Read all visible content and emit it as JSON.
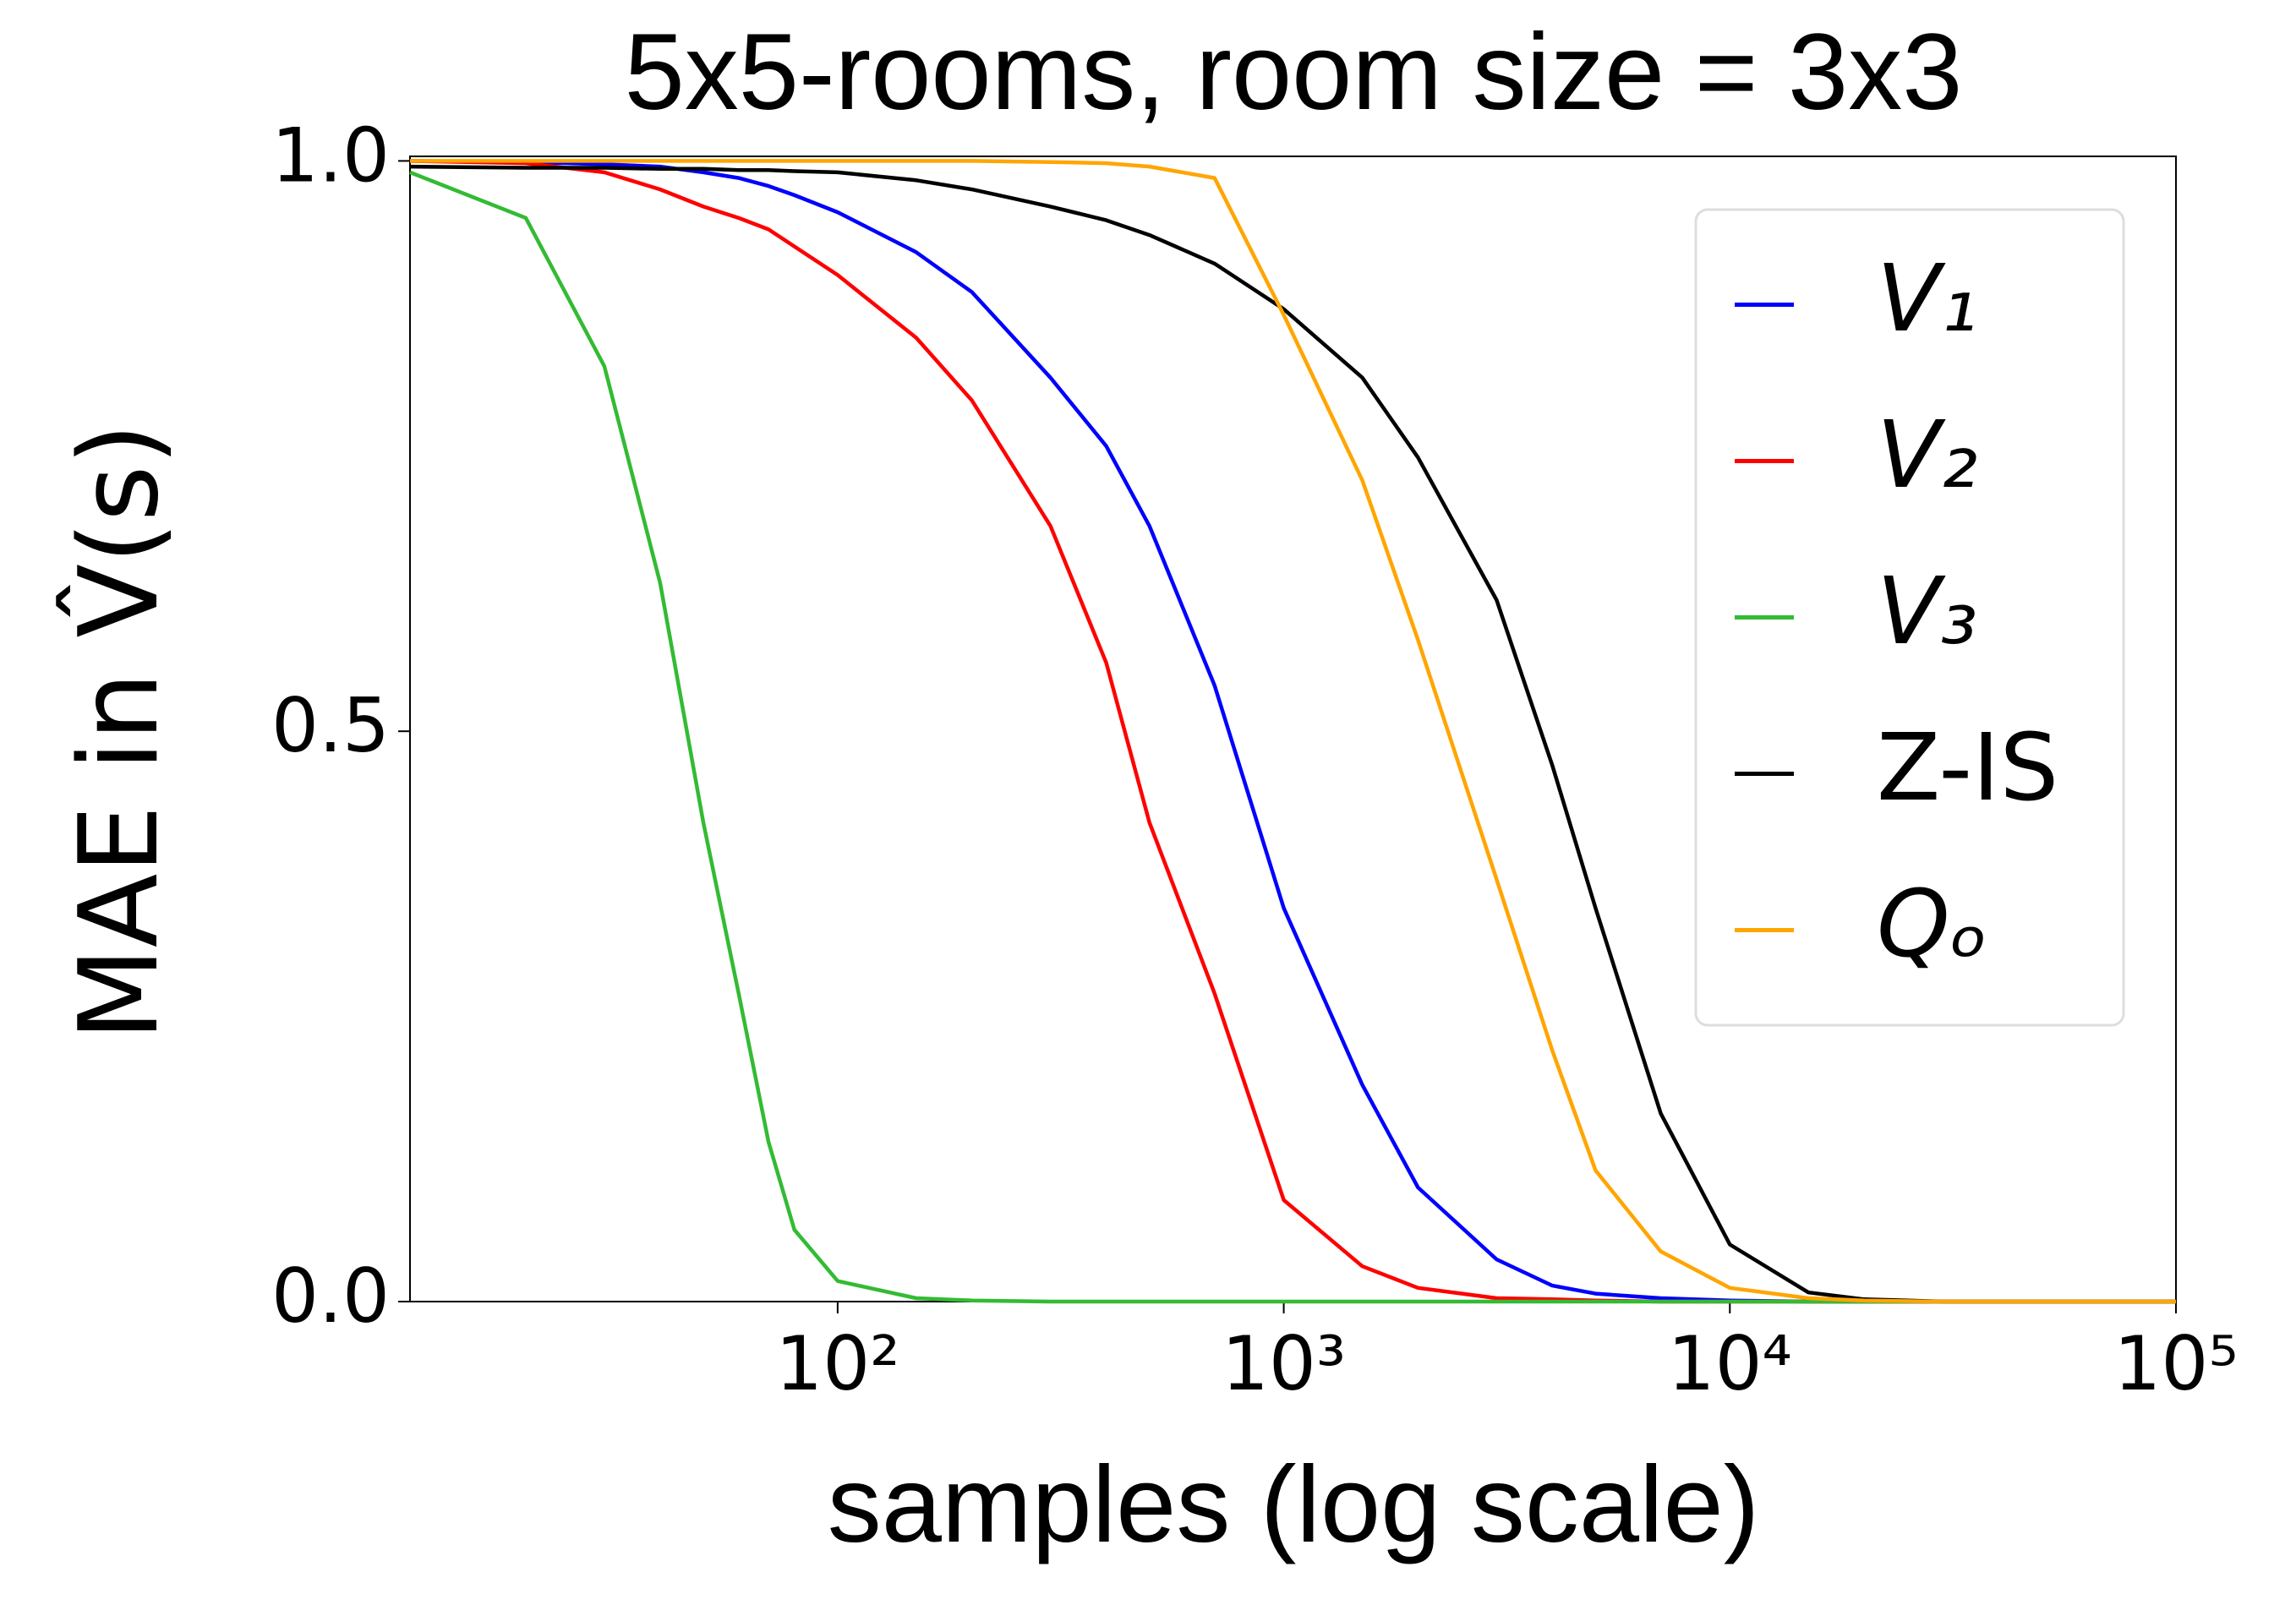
{
  "chart_data": {
    "type": "line",
    "title": "5x5-rooms, room size = 3x3",
    "xlabel": "samples (log scale)",
    "ylabel": "MAE in V̂(s)",
    "xscale": "log",
    "xlim": [
      11,
      100000
    ],
    "ylim": [
      0,
      1.004
    ],
    "xticks": [
      {
        "value": 100,
        "label": "10²"
      },
      {
        "value": 1000,
        "label": "10³"
      },
      {
        "value": 10000,
        "label": "10⁴"
      },
      {
        "value": 100000,
        "label": "10⁵"
      }
    ],
    "yticks": [
      {
        "value": 0,
        "label": "0.0"
      },
      0.5,
      {
        "value": 1,
        "label": "1.0"
      }
    ],
    "legend": "upper right",
    "x": [
      11,
      20,
      30,
      40,
      50,
      60,
      70,
      80,
      100,
      150,
      200,
      300,
      400,
      500,
      700,
      1000,
      1500,
      2000,
      3000,
      4000,
      5000,
      7000,
      10000,
      15000,
      20000,
      30000,
      50000,
      100000
    ],
    "series": [
      {
        "name": "V₁",
        "color": "#0000ff",
        "values": [
          1.0,
          0.999,
          0.997,
          0.995,
          0.99,
          0.985,
          0.978,
          0.97,
          0.955,
          0.92,
          0.885,
          0.81,
          0.75,
          0.68,
          0.54,
          0.345,
          0.19,
          0.1,
          0.037,
          0.014,
          0.007,
          0.003,
          0.001,
          0,
          0,
          0,
          0,
          0
        ]
      },
      {
        "name": "V₂",
        "color": "#ff0000",
        "values": [
          1.0,
          0.998,
          0.99,
          0.975,
          0.96,
          0.95,
          0.94,
          0.925,
          0.9,
          0.845,
          0.79,
          0.68,
          0.56,
          0.42,
          0.27,
          0.089,
          0.031,
          0.012,
          0.003,
          0.002,
          0.001,
          0,
          0,
          0,
          0,
          0,
          0,
          0
        ]
      },
      {
        "name": "V₃",
        "color": "#33bb33",
        "values": [
          0.99,
          0.95,
          0.82,
          0.63,
          0.42,
          0.27,
          0.14,
          0.063,
          0.018,
          0.003,
          0.001,
          0,
          0,
          0,
          0,
          0,
          0,
          0,
          0,
          0,
          0,
          0,
          0,
          0,
          0,
          0,
          0,
          0
        ]
      },
      {
        "name": "Z-IS",
        "color": "#000000",
        "values": [
          0.995,
          0.994,
          0.994,
          0.993,
          0.993,
          0.992,
          0.992,
          0.991,
          0.99,
          0.983,
          0.975,
          0.96,
          0.948,
          0.935,
          0.91,
          0.87,
          0.81,
          0.74,
          0.615,
          0.47,
          0.345,
          0.165,
          0.05,
          0.008,
          0.002,
          0,
          0,
          0
        ]
      },
      {
        "name": "Qₒ",
        "color": "#ffa500",
        "values": [
          1.0,
          1.0,
          1.0,
          1.0,
          1.0,
          1.0,
          1.0,
          1.0,
          1.0,
          1.0,
          1.0,
          0.999,
          0.998,
          0.995,
          0.985,
          0.865,
          0.72,
          0.58,
          0.37,
          0.22,
          0.115,
          0.044,
          0.012,
          0.003,
          0.001,
          0,
          0,
          0
        ]
      }
    ]
  }
}
